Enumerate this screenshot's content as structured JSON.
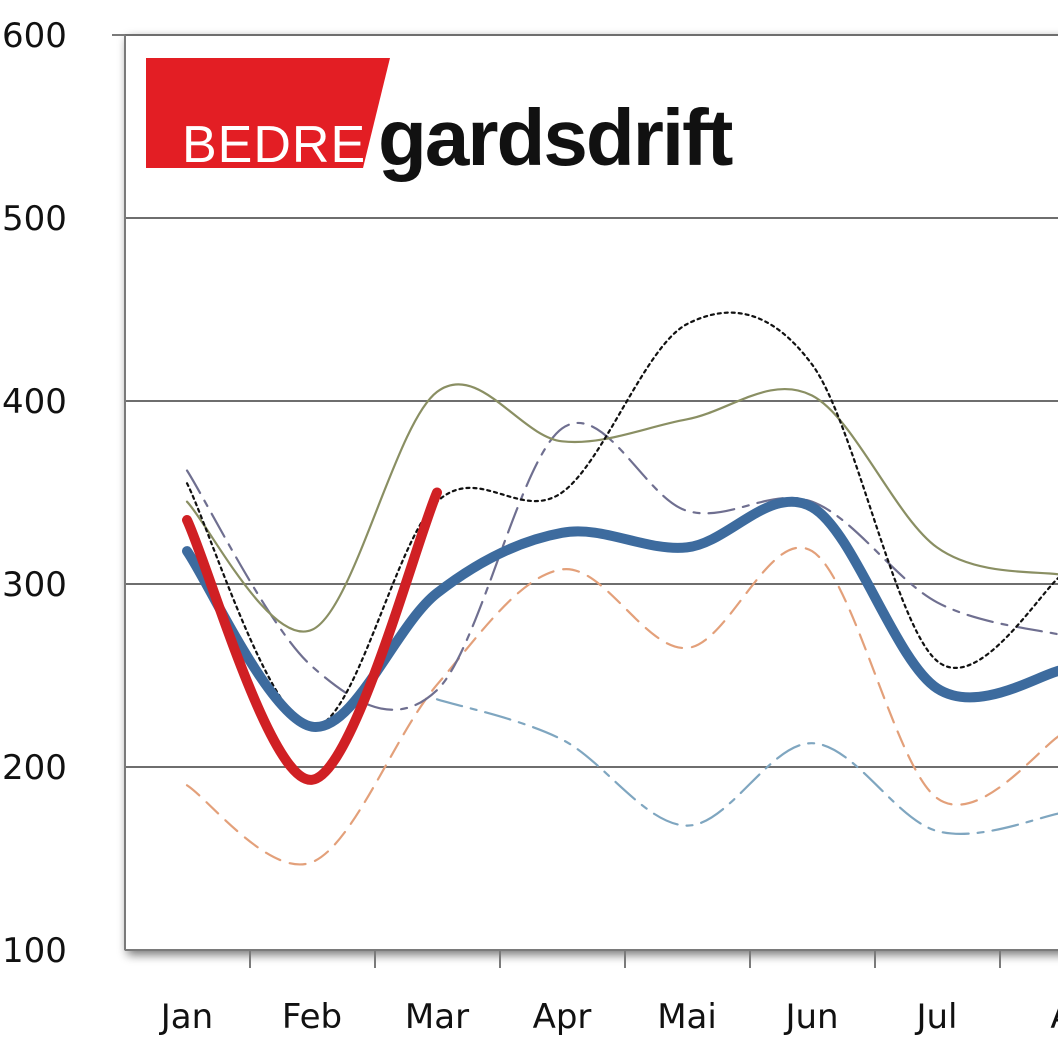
{
  "logo": {
    "red_text": "BEDRE",
    "black_text": "gardsdrift",
    "red_color": "#e31e24"
  },
  "chart_data": {
    "type": "line",
    "title": "",
    "xlabel": "",
    "ylabel": "",
    "categories": [
      "Jan",
      "Feb",
      "Mar",
      "Apr",
      "Mai",
      "Jun",
      "Jul",
      "A"
    ],
    "ylim": [
      100,
      600
    ],
    "yticks": [
      100,
      200,
      300,
      400,
      500,
      600
    ],
    "grid": true,
    "series": [
      {
        "values": [
          318,
          222,
          295,
          328,
          320,
          342,
          243,
          253
        ],
        "color": "#3d6b9e",
        "dash": "solid",
        "weight": "thick"
      },
      {
        "values": [
          335,
          193,
          350,
          null,
          null,
          null,
          null,
          null
        ],
        "color": "#d02024",
        "dash": "solid",
        "weight": "thick"
      },
      {
        "values": [
          355,
          222,
          345,
          350,
          442,
          420,
          258,
          305
        ],
        "color": "#111111",
        "dash": "dotted",
        "weight": "thin"
      },
      {
        "values": [
          345,
          275,
          405,
          378,
          390,
          403,
          320,
          305
        ],
        "color": "#8a8f63",
        "dash": "solid",
        "weight": "thin"
      },
      {
        "values": [
          362,
          255,
          242,
          385,
          340,
          345,
          290,
          272
        ],
        "color": "#6f6f90",
        "dash": "dashdot",
        "weight": "thin"
      },
      {
        "values": [
          190,
          148,
          245,
          308,
          265,
          318,
          183,
          218
        ],
        "color": "#e3a07a",
        "dash": "dashed",
        "weight": "thin"
      },
      {
        "values": [
          null,
          null,
          237,
          215,
          168,
          213,
          165,
          175
        ],
        "color": "#7fa6c0",
        "dash": "dashdot",
        "weight": "thin"
      }
    ]
  }
}
